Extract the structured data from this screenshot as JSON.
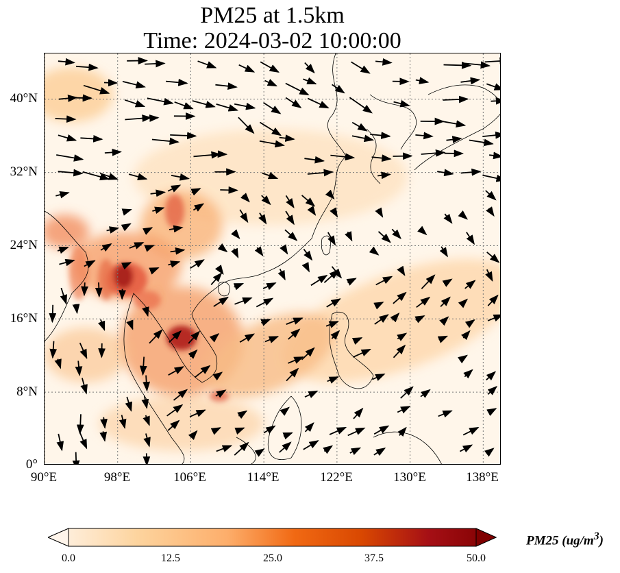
{
  "title_line1": "PM25 at 1.5km",
  "title_line2": "Time: 2024-03-02 10:00:00",
  "map": {
    "extent": {
      "lon": [
        90,
        140
      ],
      "lat": [
        0,
        45
      ]
    },
    "lat_ticks": [
      {
        "value": 40,
        "label": "40°N"
      },
      {
        "value": 32,
        "label": "32°N"
      },
      {
        "value": 24,
        "label": "24°N"
      },
      {
        "value": 16,
        "label": "16°N"
      },
      {
        "value": 8,
        "label": "8°N"
      },
      {
        "value": 0,
        "label": "0°"
      }
    ],
    "lon_ticks": [
      {
        "value": 90,
        "label": "90°E"
      },
      {
        "value": 98,
        "label": "98°E"
      },
      {
        "value": 106,
        "label": "106°E"
      },
      {
        "value": 114,
        "label": "114°E"
      },
      {
        "value": 122,
        "label": "122°E"
      },
      {
        "value": 130,
        "label": "130°E"
      },
      {
        "value": 138,
        "label": "138°E"
      }
    ],
    "gridlines": true
  },
  "colorbar": {
    "label": "PM25 (ug/m",
    "label_sup": "3",
    "label_end": ")",
    "min": 0,
    "max": 50,
    "ticks": [
      "0.0",
      "12.5",
      "25.0",
      "37.5",
      "50.0"
    ],
    "colors": [
      "#fff5eb",
      "#fdd49e",
      "#fdae6b",
      "#f16913",
      "#d94801",
      "#a50f15",
      "#7f0000"
    ]
  }
}
